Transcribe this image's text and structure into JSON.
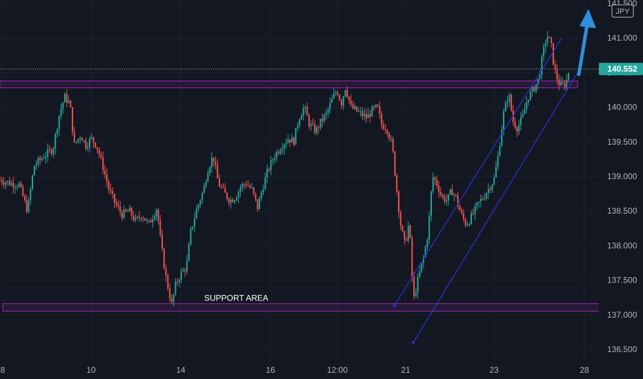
{
  "chart_data": {
    "type": "candlestick",
    "currency": "JPY",
    "current_price": "140.552",
    "ylim": [
      136.35,
      141.55
    ],
    "y_ticks": [
      "136.500",
      "137.000",
      "137.500",
      "138.000",
      "138.500",
      "139.000",
      "139.500",
      "140.000",
      "140.500",
      "141.000",
      "141.500"
    ],
    "x_ticks": [
      "8",
      "10",
      "14",
      "16",
      "12:00",
      "21",
      "23",
      "28"
    ],
    "annotation": "SUPPORT AREA",
    "resistance_zone": [
      140.28,
      140.38
    ],
    "support_zone": [
      137.05,
      137.16
    ],
    "channel_upper": {
      "from": [
        37.2,
        137.13
      ],
      "to": [
        53.0,
        141.0
      ]
    },
    "channel_lower": {
      "from": [
        39.0,
        136.6
      ],
      "to": [
        54.5,
        140.5
      ]
    },
    "colors": {
      "up": "#26a69a",
      "down": "#ef5350",
      "zone": "#9c27b0",
      "channel": "#2b35d8",
      "arrow": "#2f8fdc",
      "bg": "#131722"
    },
    "path": [
      [
        0,
        138.95
      ],
      [
        1,
        138.9
      ],
      [
        1.8,
        138.88
      ],
      [
        2.6,
        138.5
      ],
      [
        3.2,
        139.15
      ],
      [
        4.2,
        139.3
      ],
      [
        5.0,
        139.4
      ],
      [
        5.6,
        139.9
      ],
      [
        6.1,
        140.15
      ],
      [
        6.6,
        140.05
      ],
      [
        7.0,
        139.45
      ],
      [
        7.6,
        139.6
      ],
      [
        8.1,
        139.45
      ],
      [
        8.6,
        139.55
      ],
      [
        9.1,
        139.45
      ],
      [
        9.6,
        139.2
      ],
      [
        10.3,
        138.8
      ],
      [
        10.9,
        138.6
      ],
      [
        11.5,
        138.45
      ],
      [
        12.2,
        138.5
      ],
      [
        12.8,
        138.35
      ],
      [
        13.4,
        138.45
      ],
      [
        14.0,
        138.3
      ],
      [
        14.8,
        138.55
      ],
      [
        15.2,
        138.0
      ],
      [
        15.7,
        137.5
      ],
      [
        16.2,
        137.15
      ],
      [
        16.6,
        137.45
      ],
      [
        17.1,
        137.6
      ],
      [
        17.6,
        137.7
      ],
      [
        18.0,
        138.2
      ],
      [
        18.6,
        138.55
      ],
      [
        19.2,
        138.8
      ],
      [
        19.6,
        139.1
      ],
      [
        20.1,
        139.3
      ],
      [
        20.6,
        138.9
      ],
      [
        21.2,
        138.75
      ],
      [
        21.7,
        138.65
      ],
      [
        22.2,
        138.7
      ],
      [
        22.7,
        138.85
      ],
      [
        23.2,
        138.9
      ],
      [
        23.8,
        138.8
      ],
      [
        24.3,
        138.55
      ],
      [
        24.8,
        138.85
      ],
      [
        25.3,
        139.1
      ],
      [
        25.9,
        139.3
      ],
      [
        26.6,
        139.45
      ],
      [
        27.2,
        139.55
      ],
      [
        27.7,
        139.5
      ],
      [
        28.2,
        139.85
      ],
      [
        28.7,
        140.0
      ],
      [
        29.2,
        139.75
      ],
      [
        29.8,
        139.65
      ],
      [
        30.3,
        139.8
      ],
      [
        30.8,
        139.9
      ],
      [
        31.3,
        140.1
      ],
      [
        31.8,
        140.25
      ],
      [
        32.2,
        140.05
      ],
      [
        32.6,
        140.3
      ],
      [
        33.1,
        140.0
      ],
      [
        33.6,
        139.95
      ],
      [
        34.1,
        139.9
      ],
      [
        34.6,
        139.85
      ],
      [
        35.1,
        139.95
      ],
      [
        35.6,
        140.0
      ],
      [
        36.0,
        139.75
      ],
      [
        36.5,
        139.7
      ],
      [
        37.0,
        139.45
      ],
      [
        37.5,
        138.7
      ],
      [
        37.8,
        138.3
      ],
      [
        38.2,
        138.0
      ],
      [
        38.6,
        138.35
      ],
      [
        39.0,
        137.2
      ],
      [
        39.5,
        137.55
      ],
      [
        40.0,
        137.85
      ],
      [
        40.4,
        138.2
      ],
      [
        40.8,
        139.0
      ],
      [
        41.2,
        138.9
      ],
      [
        41.7,
        138.7
      ],
      [
        42.2,
        138.65
      ],
      [
        42.6,
        138.8
      ],
      [
        43.0,
        138.7
      ],
      [
        43.5,
        138.45
      ],
      [
        44.0,
        138.3
      ],
      [
        44.6,
        138.45
      ],
      [
        45.1,
        138.6
      ],
      [
        45.6,
        138.7
      ],
      [
        46.2,
        138.85
      ],
      [
        46.6,
        138.95
      ],
      [
        47.0,
        139.3
      ],
      [
        47.5,
        139.9
      ],
      [
        48.0,
        140.2
      ],
      [
        48.4,
        139.8
      ],
      [
        48.8,
        139.7
      ],
      [
        49.3,
        139.85
      ],
      [
        49.8,
        140.15
      ],
      [
        50.3,
        140.25
      ],
      [
        50.8,
        140.4
      ],
      [
        51.2,
        140.75
      ],
      [
        51.6,
        141.05
      ],
      [
        52.0,
        140.9
      ],
      [
        52.3,
        140.55
      ],
      [
        52.7,
        140.35
      ],
      [
        53.0,
        140.3
      ],
      [
        53.4,
        140.35
      ],
      [
        53.7,
        140.55
      ]
    ]
  }
}
